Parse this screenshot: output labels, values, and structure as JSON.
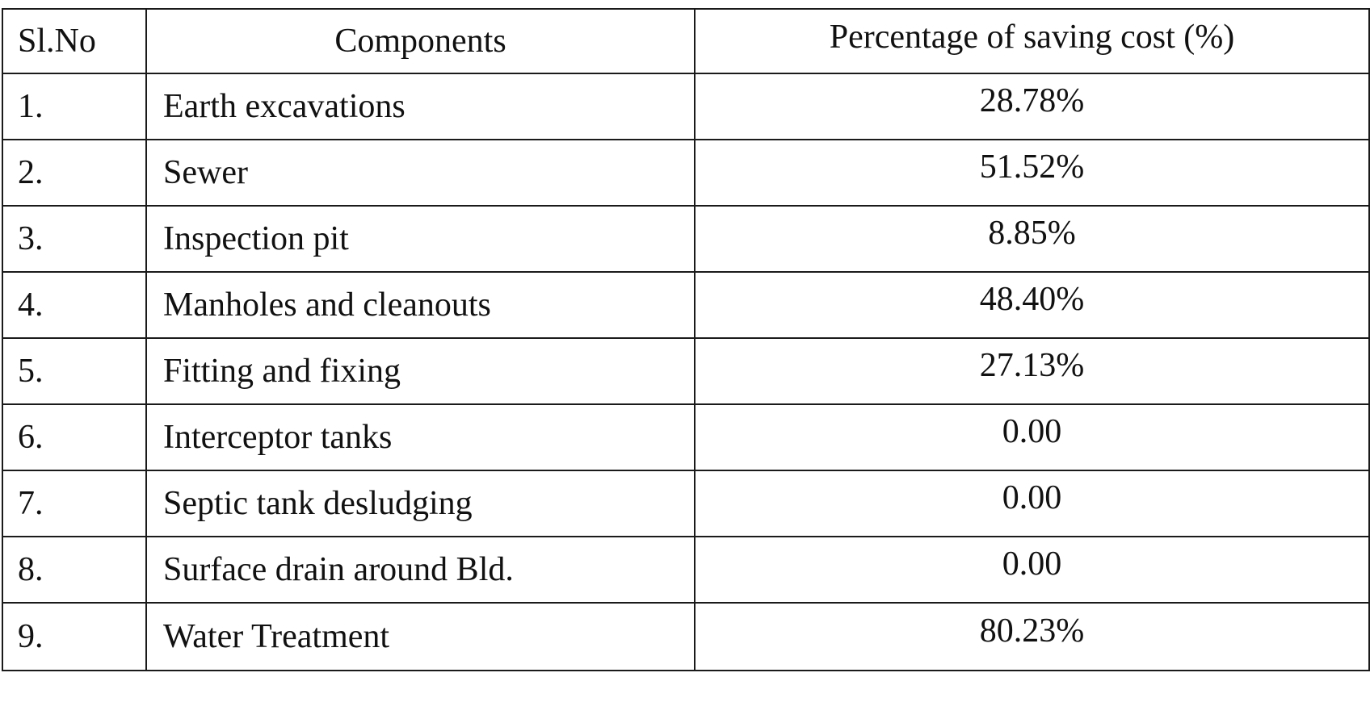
{
  "table": {
    "headers": {
      "sl_no": "Sl.No",
      "components": "Components",
      "saving": "Percentage of saving cost (%)"
    },
    "rows": [
      {
        "sl": "1.",
        "component": "Earth excavations",
        "saving": "28.78%"
      },
      {
        "sl": "2.",
        "component": "Sewer",
        "saving": "51.52%"
      },
      {
        "sl": "3.",
        "component": "Inspection pit",
        "saving": "8.85%"
      },
      {
        "sl": "4.",
        "component": "Manholes and cleanouts",
        "saving": "48.40%"
      },
      {
        "sl": "5.",
        "component": "Fitting and fixing",
        "saving": "27.13%"
      },
      {
        "sl": "6.",
        "component": "Interceptor tanks",
        "saving": "0.00"
      },
      {
        "sl": "7.",
        "component": "Septic tank desludging",
        "saving": "0.00"
      },
      {
        "sl": "8.",
        "component": "Surface drain around Bld.",
        "saving": "0.00"
      },
      {
        "sl": "9.",
        "component": "Water Treatment",
        "saving": "80.23%"
      }
    ]
  }
}
